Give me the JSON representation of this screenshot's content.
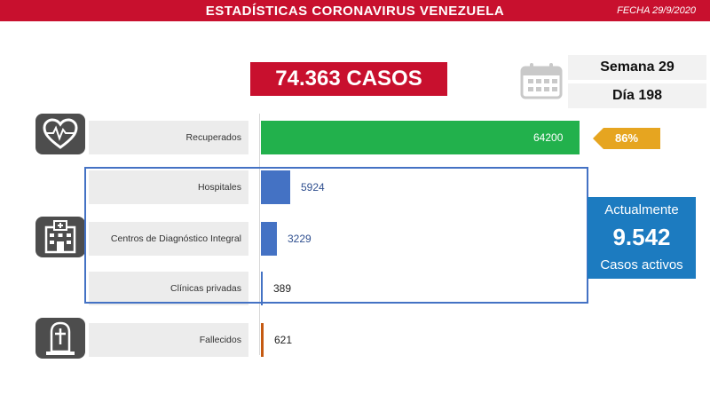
{
  "header": {
    "title": "ESTADÍSTICAS CORONAVIRUS VENEZUELA",
    "date": "FECHA 29/9/2020"
  },
  "total_cases": "74.363 CASOS",
  "week": "Semana 29",
  "day": "Día 198",
  "recovered_percent": "86%",
  "active": {
    "line1": "Actualmente",
    "value": "9.542",
    "line2": "Casos activos"
  },
  "icons": [
    "calendar-icon",
    "heart-pulse-icon",
    "hospital-icon",
    "tombstone-icon"
  ],
  "colors": {
    "header": "#c8102e",
    "recovered": "#22b14c",
    "hospital": "#4472c4",
    "deaths": "#c55a11",
    "percent_badge": "#e6a520",
    "active_box": "#1c7bc0"
  },
  "chart_data": {
    "type": "bar",
    "orientation": "horizontal",
    "categories": [
      "Recuperados",
      "Hospitales",
      "Centros de Diagnóstico Integral",
      "Clínicas privadas",
      "Fallecidos"
    ],
    "values": [
      64200,
      5924,
      3229,
      389,
      621
    ],
    "value_labels": [
      "64200",
      "5924",
      "3229",
      "389",
      "621"
    ],
    "xlim": [
      0,
      64200
    ]
  }
}
